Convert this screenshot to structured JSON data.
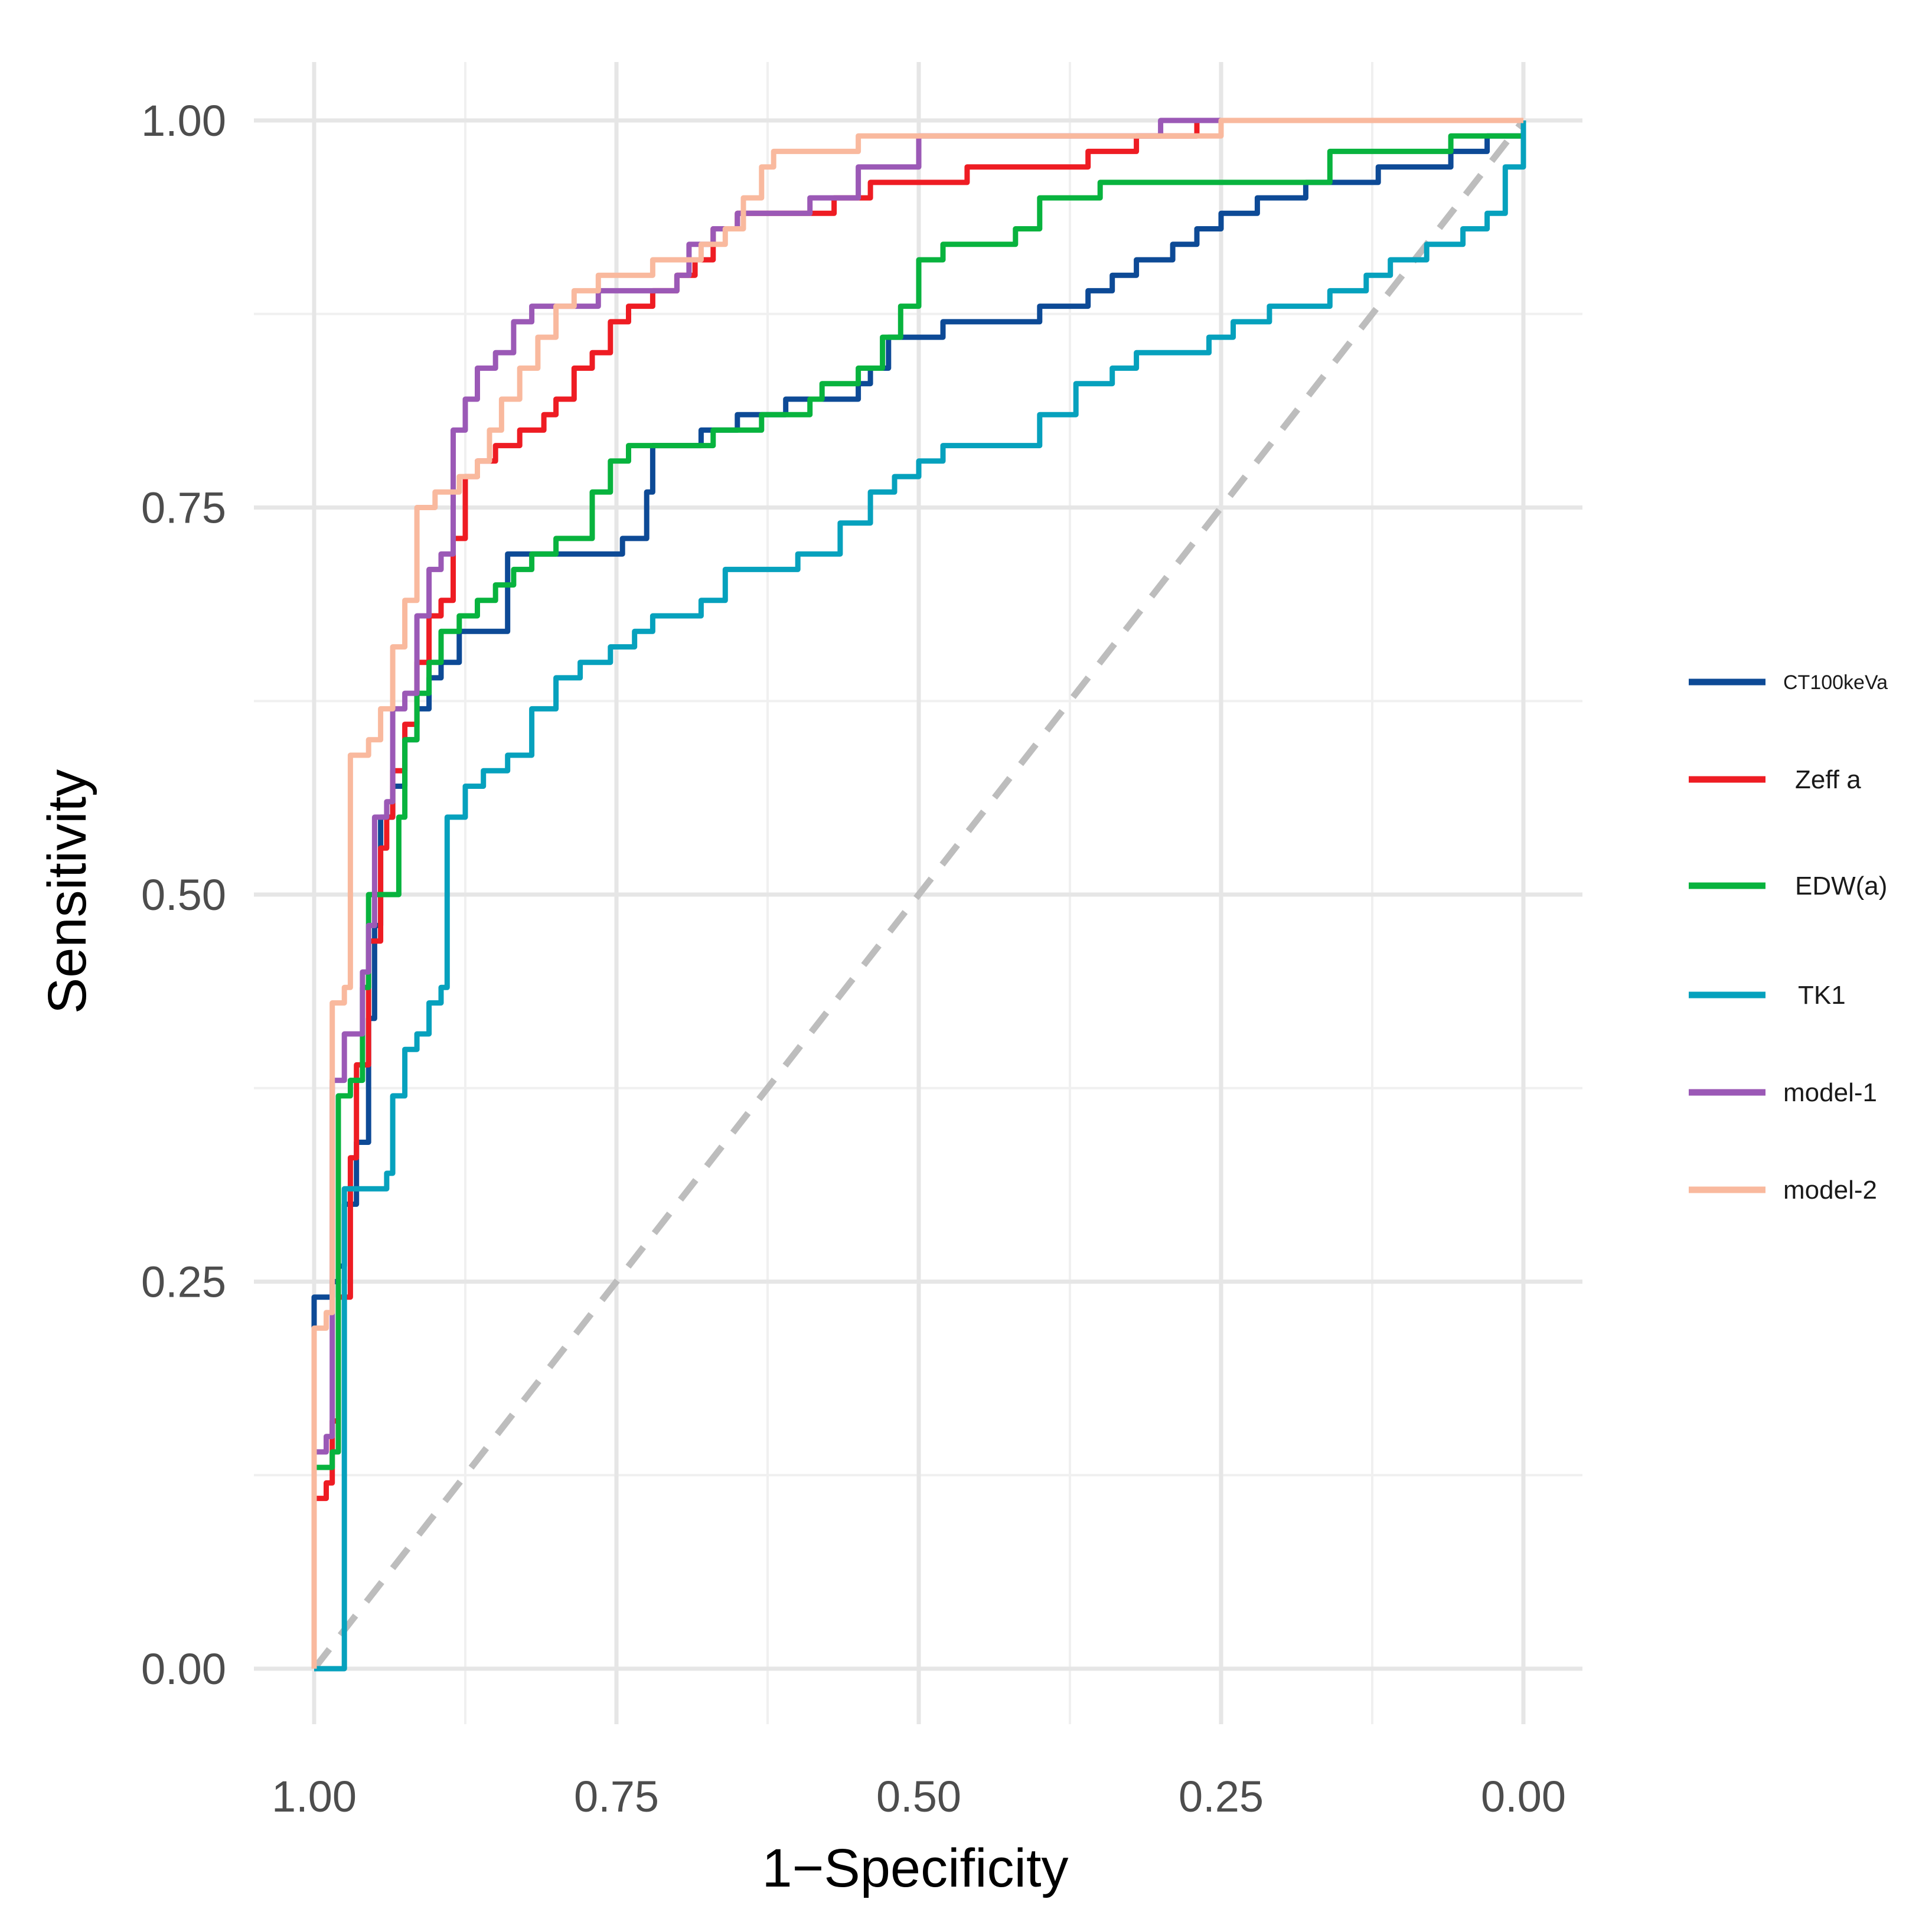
{
  "chart_data": {
    "type": "line",
    "title": "",
    "xlabel": "1−Specificity",
    "ylabel": "Sensitivity",
    "x_reversed": true,
    "xlim": [
      1.0,
      0.0
    ],
    "ylim": [
      0.0,
      1.0
    ],
    "grid": true,
    "x_ticks": [
      "1.00",
      "0.75",
      "0.50",
      "0.25",
      "0.00"
    ],
    "y_ticks": [
      "0.00",
      "0.25",
      "0.50",
      "0.75",
      "1.00"
    ],
    "legend_position": "right",
    "reference_line": {
      "name": "chance",
      "points": [
        [
          1.0,
          0.0
        ],
        [
          0.0,
          1.0
        ]
      ],
      "color": "#bdbdbd",
      "style": "dashed"
    },
    "series": [
      {
        "name": "CT100keVa",
        "color": "#0d4a96",
        "points": [
          [
            1.0,
            0.0
          ],
          [
            1.0,
            0.24
          ],
          [
            0.985,
            0.25
          ],
          [
            0.98,
            0.26
          ],
          [
            0.975,
            0.3
          ],
          [
            0.965,
            0.34
          ],
          [
            0.955,
            0.42
          ],
          [
            0.95,
            0.48
          ],
          [
            0.945,
            0.55
          ],
          [
            0.935,
            0.57
          ],
          [
            0.925,
            0.6
          ],
          [
            0.915,
            0.62
          ],
          [
            0.905,
            0.64
          ],
          [
            0.895,
            0.65
          ],
          [
            0.88,
            0.67
          ],
          [
            0.865,
            0.67
          ],
          [
            0.84,
            0.72
          ],
          [
            0.815,
            0.72
          ],
          [
            0.78,
            0.72
          ],
          [
            0.76,
            0.72
          ],
          [
            0.745,
            0.73
          ],
          [
            0.725,
            0.76
          ],
          [
            0.72,
            0.79
          ],
          [
            0.7,
            0.79
          ],
          [
            0.68,
            0.8
          ],
          [
            0.65,
            0.81
          ],
          [
            0.63,
            0.81
          ],
          [
            0.61,
            0.82
          ],
          [
            0.58,
            0.82
          ],
          [
            0.55,
            0.83
          ],
          [
            0.54,
            0.84
          ],
          [
            0.525,
            0.86
          ],
          [
            0.51,
            0.86
          ],
          [
            0.48,
            0.87
          ],
          [
            0.45,
            0.87
          ],
          [
            0.4,
            0.88
          ],
          [
            0.36,
            0.89
          ],
          [
            0.34,
            0.9
          ],
          [
            0.32,
            0.91
          ],
          [
            0.29,
            0.92
          ],
          [
            0.27,
            0.93
          ],
          [
            0.25,
            0.94
          ],
          [
            0.22,
            0.95
          ],
          [
            0.18,
            0.96
          ],
          [
            0.12,
            0.97
          ],
          [
            0.06,
            0.98
          ],
          [
            0.03,
            0.99
          ],
          [
            0.0,
            1.0
          ]
        ]
      },
      {
        "name": "Zeff a",
        "color": "#ee1c23",
        "points": [
          [
            1.0,
            0.0
          ],
          [
            1.0,
            0.11
          ],
          [
            0.99,
            0.12
          ],
          [
            0.985,
            0.16
          ],
          [
            0.98,
            0.24
          ],
          [
            0.97,
            0.33
          ],
          [
            0.965,
            0.39
          ],
          [
            0.955,
            0.47
          ],
          [
            0.945,
            0.53
          ],
          [
            0.94,
            0.55
          ],
          [
            0.935,
            0.58
          ],
          [
            0.925,
            0.61
          ],
          [
            0.915,
            0.65
          ],
          [
            0.905,
            0.68
          ],
          [
            0.895,
            0.69
          ],
          [
            0.885,
            0.73
          ],
          [
            0.875,
            0.77
          ],
          [
            0.865,
            0.78
          ],
          [
            0.85,
            0.79
          ],
          [
            0.83,
            0.8
          ],
          [
            0.81,
            0.81
          ],
          [
            0.8,
            0.82
          ],
          [
            0.785,
            0.84
          ],
          [
            0.77,
            0.85
          ],
          [
            0.755,
            0.87
          ],
          [
            0.74,
            0.88
          ],
          [
            0.72,
            0.89
          ],
          [
            0.7,
            0.9
          ],
          [
            0.685,
            0.91
          ],
          [
            0.67,
            0.93
          ],
          [
            0.65,
            0.94
          ],
          [
            0.6,
            0.94
          ],
          [
            0.57,
            0.95
          ],
          [
            0.54,
            0.96
          ],
          [
            0.49,
            0.96
          ],
          [
            0.46,
            0.97
          ],
          [
            0.4,
            0.97
          ],
          [
            0.36,
            0.98
          ],
          [
            0.32,
            0.99
          ],
          [
            0.3,
            0.99
          ],
          [
            0.27,
            1.0
          ],
          [
            0.0,
            1.0
          ]
        ]
      },
      {
        "name": "EDW(a)",
        "color": "#08b33e",
        "points": [
          [
            1.0,
            0.0
          ],
          [
            1.0,
            0.13
          ],
          [
            0.985,
            0.14
          ],
          [
            0.98,
            0.37
          ],
          [
            0.97,
            0.38
          ],
          [
            0.96,
            0.44
          ],
          [
            0.955,
            0.5
          ],
          [
            0.94,
            0.5
          ],
          [
            0.93,
            0.55
          ],
          [
            0.925,
            0.6
          ],
          [
            0.915,
            0.63
          ],
          [
            0.905,
            0.65
          ],
          [
            0.895,
            0.67
          ],
          [
            0.88,
            0.68
          ],
          [
            0.865,
            0.69
          ],
          [
            0.85,
            0.7
          ],
          [
            0.835,
            0.71
          ],
          [
            0.82,
            0.72
          ],
          [
            0.8,
            0.73
          ],
          [
            0.785,
            0.73
          ],
          [
            0.77,
            0.76
          ],
          [
            0.755,
            0.78
          ],
          [
            0.74,
            0.79
          ],
          [
            0.7,
            0.79
          ],
          [
            0.67,
            0.8
          ],
          [
            0.63,
            0.81
          ],
          [
            0.59,
            0.82
          ],
          [
            0.58,
            0.83
          ],
          [
            0.55,
            0.84
          ],
          [
            0.53,
            0.86
          ],
          [
            0.515,
            0.88
          ],
          [
            0.5,
            0.91
          ],
          [
            0.48,
            0.92
          ],
          [
            0.45,
            0.92
          ],
          [
            0.42,
            0.93
          ],
          [
            0.4,
            0.95
          ],
          [
            0.35,
            0.96
          ],
          [
            0.22,
            0.96
          ],
          [
            0.16,
            0.98
          ],
          [
            0.06,
            0.99
          ],
          [
            0.0,
            1.0
          ]
        ]
      },
      {
        "name": "TK1",
        "color": "#06a1bd",
        "points": [
          [
            1.0,
            0.0
          ],
          [
            0.98,
            0.0
          ],
          [
            0.975,
            0.31
          ],
          [
            0.965,
            0.31
          ],
          [
            0.94,
            0.32
          ],
          [
            0.935,
            0.37
          ],
          [
            0.925,
            0.4
          ],
          [
            0.915,
            0.41
          ],
          [
            0.905,
            0.43
          ],
          [
            0.895,
            0.44
          ],
          [
            0.89,
            0.55
          ],
          [
            0.875,
            0.57
          ],
          [
            0.86,
            0.58
          ],
          [
            0.84,
            0.59
          ],
          [
            0.82,
            0.62
          ],
          [
            0.8,
            0.64
          ],
          [
            0.78,
            0.65
          ],
          [
            0.755,
            0.66
          ],
          [
            0.735,
            0.67
          ],
          [
            0.72,
            0.68
          ],
          [
            0.7,
            0.68
          ],
          [
            0.68,
            0.69
          ],
          [
            0.66,
            0.71
          ],
          [
            0.63,
            0.71
          ],
          [
            0.6,
            0.72
          ],
          [
            0.58,
            0.72
          ],
          [
            0.565,
            0.74
          ],
          [
            0.54,
            0.76
          ],
          [
            0.52,
            0.77
          ],
          [
            0.5,
            0.78
          ],
          [
            0.48,
            0.79
          ],
          [
            0.44,
            0.79
          ],
          [
            0.4,
            0.81
          ],
          [
            0.37,
            0.83
          ],
          [
            0.34,
            0.84
          ],
          [
            0.32,
            0.85
          ],
          [
            0.28,
            0.85
          ],
          [
            0.26,
            0.86
          ],
          [
            0.24,
            0.87
          ],
          [
            0.21,
            0.88
          ],
          [
            0.16,
            0.89
          ],
          [
            0.13,
            0.9
          ],
          [
            0.11,
            0.91
          ],
          [
            0.08,
            0.92
          ],
          [
            0.05,
            0.93
          ],
          [
            0.03,
            0.94
          ],
          [
            0.015,
            0.97
          ],
          [
            0.0,
            1.0
          ]
        ]
      },
      {
        "name": "model-1",
        "color": "#9b59b6",
        "points": [
          [
            1.0,
            0.0
          ],
          [
            1.0,
            0.14
          ],
          [
            0.99,
            0.15
          ],
          [
            0.985,
            0.38
          ],
          [
            0.975,
            0.41
          ],
          [
            0.96,
            0.45
          ],
          [
            0.955,
            0.48
          ],
          [
            0.95,
            0.55
          ],
          [
            0.94,
            0.56
          ],
          [
            0.935,
            0.62
          ],
          [
            0.925,
            0.63
          ],
          [
            0.915,
            0.68
          ],
          [
            0.905,
            0.71
          ],
          [
            0.895,
            0.72
          ],
          [
            0.885,
            0.8
          ],
          [
            0.875,
            0.82
          ],
          [
            0.865,
            0.84
          ],
          [
            0.85,
            0.85
          ],
          [
            0.835,
            0.87
          ],
          [
            0.82,
            0.88
          ],
          [
            0.8,
            0.88
          ],
          [
            0.78,
            0.88
          ],
          [
            0.765,
            0.89
          ],
          [
            0.74,
            0.89
          ],
          [
            0.72,
            0.89
          ],
          [
            0.7,
            0.9
          ],
          [
            0.69,
            0.92
          ],
          [
            0.67,
            0.93
          ],
          [
            0.65,
            0.94
          ],
          [
            0.59,
            0.95
          ],
          [
            0.55,
            0.97
          ],
          [
            0.5,
            0.99
          ],
          [
            0.49,
            0.99
          ],
          [
            0.3,
            1.0
          ],
          [
            0.0,
            1.0
          ]
        ]
      },
      {
        "name": "model-2",
        "color": "#f9b99e",
        "points": [
          [
            1.0,
            0.0
          ],
          [
            1.0,
            0.22
          ],
          [
            0.99,
            0.23
          ],
          [
            0.985,
            0.43
          ],
          [
            0.975,
            0.44
          ],
          [
            0.97,
            0.59
          ],
          [
            0.955,
            0.6
          ],
          [
            0.945,
            0.62
          ],
          [
            0.935,
            0.66
          ],
          [
            0.925,
            0.69
          ],
          [
            0.915,
            0.75
          ],
          [
            0.9,
            0.76
          ],
          [
            0.88,
            0.77
          ],
          [
            0.865,
            0.78
          ],
          [
            0.855,
            0.8
          ],
          [
            0.845,
            0.82
          ],
          [
            0.83,
            0.84
          ],
          [
            0.815,
            0.86
          ],
          [
            0.8,
            0.88
          ],
          [
            0.785,
            0.89
          ],
          [
            0.765,
            0.9
          ],
          [
            0.74,
            0.9
          ],
          [
            0.72,
            0.91
          ],
          [
            0.7,
            0.91
          ],
          [
            0.68,
            0.92
          ],
          [
            0.66,
            0.93
          ],
          [
            0.645,
            0.95
          ],
          [
            0.63,
            0.97
          ],
          [
            0.62,
            0.98
          ],
          [
            0.6,
            0.98
          ],
          [
            0.57,
            0.98
          ],
          [
            0.55,
            0.99
          ],
          [
            0.25,
            0.99
          ],
          [
            0.25,
            1.0
          ],
          [
            0.0,
            1.0
          ]
        ]
      }
    ]
  }
}
